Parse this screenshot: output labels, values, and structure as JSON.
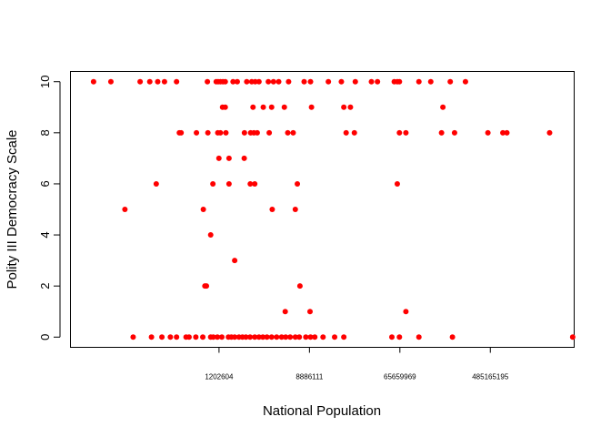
{
  "chart_data": {
    "type": "scatter",
    "title": "",
    "xlabel": "National Population",
    "ylabel": "Polity III Democracy Scale",
    "x_scale": "log",
    "xlim": [
      45000,
      3100000000
    ],
    "ylim": [
      -0.4,
      10.4
    ],
    "x_ticks": [
      1202604,
      8886111,
      65659969,
      485165195
    ],
    "x_tick_labels": [
      "1202604",
      "8886111",
      "65659969",
      "485165195"
    ],
    "y_ticks": [
      0,
      2,
      4,
      6,
      8,
      10
    ],
    "y_tick_labels": [
      "0",
      "2",
      "4",
      "6",
      "8",
      "10"
    ],
    "grid": false,
    "legend": "none",
    "point_color": "#ff0000",
    "series": [
      {
        "points": [
          [
            75000,
            10
          ],
          [
            110000,
            10
          ],
          [
            210000,
            10
          ],
          [
            260000,
            10
          ],
          [
            310000,
            10
          ],
          [
            360000,
            10
          ],
          [
            470000,
            10
          ],
          [
            930000,
            10
          ],
          [
            1130000,
            10
          ],
          [
            1180000,
            10
          ],
          [
            1240000,
            10
          ],
          [
            1310000,
            10
          ],
          [
            1380000,
            10
          ],
          [
            1640000,
            10
          ],
          [
            1800000,
            10
          ],
          [
            2220000,
            10
          ],
          [
            2480000,
            10
          ],
          [
            2680000,
            10
          ],
          [
            2910000,
            10
          ],
          [
            3580000,
            10
          ],
          [
            4010000,
            10
          ],
          [
            4500000,
            10
          ],
          [
            5600000,
            10
          ],
          [
            7900000,
            10
          ],
          [
            9100000,
            10
          ],
          [
            13500000,
            10
          ],
          [
            18000000,
            10
          ],
          [
            24500000,
            10
          ],
          [
            35000000,
            10
          ],
          [
            40000000,
            10
          ],
          [
            58000000,
            10
          ],
          [
            62000000,
            10
          ],
          [
            65000000,
            10
          ],
          [
            100000000,
            10
          ],
          [
            130000000,
            10
          ],
          [
            200000000,
            10
          ],
          [
            280000000,
            10
          ],
          [
            1800000000,
            8
          ],
          [
            1300000,
            9
          ],
          [
            1380000,
            9
          ],
          [
            2550000,
            9
          ],
          [
            3200000,
            9
          ],
          [
            3850000,
            9
          ],
          [
            5100000,
            9
          ],
          [
            9300000,
            9
          ],
          [
            19000000,
            9
          ],
          [
            22000000,
            9
          ],
          [
            170000000,
            9
          ],
          [
            460000000,
            8
          ],
          [
            640000000,
            8
          ],
          [
            500000,
            8
          ],
          [
            700000000,
            8
          ],
          [
            520000,
            8
          ],
          [
            730000,
            8
          ],
          [
            940000,
            8
          ],
          [
            1170000,
            8
          ],
          [
            1240000,
            8
          ],
          [
            1400000,
            8
          ],
          [
            2110000,
            8
          ],
          [
            2420000,
            8
          ],
          [
            2600000,
            8
          ],
          [
            2800000,
            8
          ],
          [
            3650000,
            8
          ],
          [
            5500000,
            8
          ],
          [
            6200000,
            8
          ],
          [
            20000000,
            8
          ],
          [
            24000000,
            8
          ],
          [
            65000000,
            8
          ],
          [
            75000000,
            8
          ],
          [
            165000000,
            8
          ],
          [
            220000000,
            8
          ],
          [
            2100000,
            7
          ],
          [
            1200000,
            7
          ],
          [
            1500000,
            7
          ],
          [
            300000,
            6
          ],
          [
            1050000,
            6
          ],
          [
            1500000,
            6
          ],
          [
            2400000,
            6
          ],
          [
            2650000,
            6
          ],
          [
            6800000,
            6
          ],
          [
            62000000,
            6
          ],
          [
            150000,
            5
          ],
          [
            850000,
            5
          ],
          [
            3900000,
            5
          ],
          [
            6500000,
            5
          ],
          [
            1000000,
            4
          ],
          [
            1700000,
            3
          ],
          [
            880000,
            2
          ],
          [
            910000,
            2
          ],
          [
            7200000,
            2
          ],
          [
            5200000,
            1
          ],
          [
            9000000,
            1
          ],
          [
            75000000,
            1
          ],
          [
            180000,
            0
          ],
          [
            270000,
            0
          ],
          [
            340000,
            0
          ],
          [
            410000,
            0
          ],
          [
            470000,
            0
          ],
          [
            580000,
            0
          ],
          [
            620000,
            0
          ],
          [
            720000,
            0
          ],
          [
            840000,
            0
          ],
          [
            1000000,
            0
          ],
          [
            1060000,
            0
          ],
          [
            1160000,
            0
          ],
          [
            1280000,
            0
          ],
          [
            1480000,
            0
          ],
          [
            1580000,
            0
          ],
          [
            1700000,
            0
          ],
          [
            1870000,
            0
          ],
          [
            2020000,
            0
          ],
          [
            2180000,
            0
          ],
          [
            2390000,
            0
          ],
          [
            2650000,
            0
          ],
          [
            2910000,
            0
          ],
          [
            3170000,
            0
          ],
          [
            3470000,
            0
          ],
          [
            3850000,
            0
          ],
          [
            4300000,
            0
          ],
          [
            4800000,
            0
          ],
          [
            5250000,
            0
          ],
          [
            5800000,
            0
          ],
          [
            6500000,
            0
          ],
          [
            7100000,
            0
          ],
          [
            8200000,
            0
          ],
          [
            9100000,
            0
          ],
          [
            10000000,
            0
          ],
          [
            12000000,
            0
          ],
          [
            15500000,
            0
          ],
          [
            19000000,
            0
          ],
          [
            55000000,
            0
          ],
          [
            65000000,
            0
          ],
          [
            100000000,
            0
          ],
          [
            210000000,
            0
          ],
          [
            3000000000,
            0
          ]
        ]
      }
    ]
  }
}
